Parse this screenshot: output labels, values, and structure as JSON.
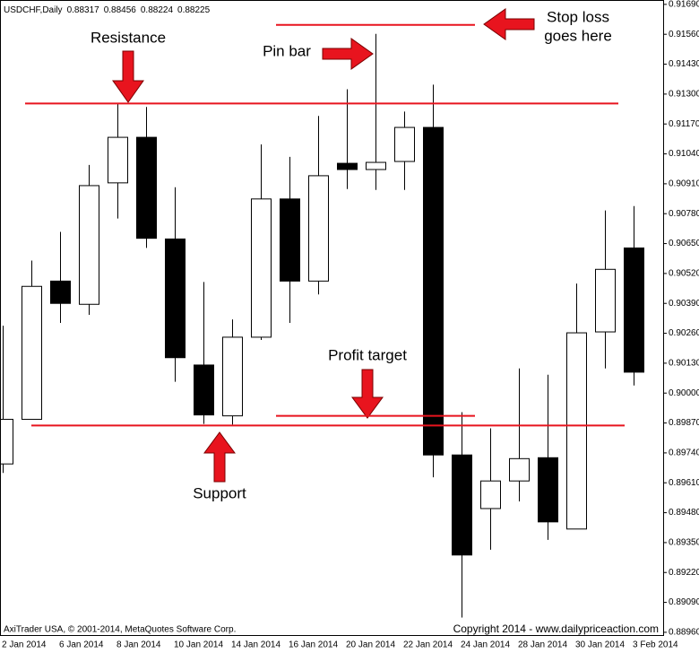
{
  "chart_data": {
    "type": "candlestick",
    "title": "USDCHF,Daily",
    "header_ohlc": [
      0.88317,
      0.88456,
      0.88224,
      0.88225
    ],
    "categories": [
      "2 Jan 2014",
      null,
      "6 Jan 2014",
      null,
      "8 Jan 2014",
      null,
      "10 Jan 2014",
      null,
      "14 Jan 2014",
      null,
      "16 Jan 2014",
      null,
      "20 Jan 2014",
      null,
      "22 Jan 2014",
      null,
      "24 Jan 2014",
      null,
      "28 Jan 2014",
      null,
      "30 Jan 2014",
      null,
      "3 Feb 2014"
    ],
    "open": [
      0.89692,
      0.89886,
      0.90487,
      0.90386,
      0.90914,
      0.91112,
      0.9067,
      0.90122,
      0.89901,
      0.90243,
      0.90844,
      0.90487,
      0.90999,
      0.90972,
      0.91007,
      0.91155,
      0.89731,
      0.89498,
      0.89618,
      0.89719,
      0.89409,
      0.90266,
      0.90631
    ],
    "high": [
      0.90293,
      0.90576,
      0.90701,
      0.90992,
      0.91259,
      0.91244,
      0.90895,
      0.90483,
      0.9032,
      0.91081,
      0.91027,
      0.91205,
      0.91321,
      0.91562,
      0.91224,
      0.91341,
      0.89917,
      0.89847,
      0.90107,
      0.9008,
      0.90476,
      0.90794,
      0.90813
    ],
    "low": [
      0.89653,
      0.89886,
      0.90305,
      0.9034,
      0.90759,
      0.90631,
      0.90049,
      0.89866,
      0.89863,
      0.90231,
      0.90305,
      0.90429,
      0.90887,
      0.90883,
      0.90883,
      0.89634,
      0.89024,
      0.89319,
      0.89529,
      0.89362,
      0.89409,
      0.90107,
      0.90033
    ],
    "close": [
      0.89886,
      0.90464,
      0.9039,
      0.90902,
      0.91112,
      0.90673,
      0.90154,
      0.89905,
      0.90243,
      0.90844,
      0.90487,
      0.90945,
      0.90972,
      0.91003,
      0.91155,
      0.89731,
      0.89296,
      0.89618,
      0.89715,
      0.8944,
      0.90262,
      0.90538,
      0.90091
    ],
    "up_color": "#ffffff",
    "down_color": "#000000",
    "ylim": [
      0.88948,
      0.91709
    ],
    "yticks": [
      {
        "value": 0.9169,
        "label": "0.91690"
      },
      {
        "value": 0.9156,
        "label": "0.91560"
      },
      {
        "value": 0.9143,
        "label": "0.91430"
      },
      {
        "value": 0.913,
        "label": "0.91300"
      },
      {
        "value": 0.9117,
        "label": "0.91170"
      },
      {
        "value": 0.9104,
        "label": "0.91040"
      },
      {
        "value": 0.9091,
        "label": "0.90910"
      },
      {
        "value": 0.9078,
        "label": "0.90780"
      },
      {
        "value": 0.9065,
        "label": "0.90650"
      },
      {
        "value": 0.9052,
        "label": "0.90520"
      },
      {
        "value": 0.9039,
        "label": "0.90390"
      },
      {
        "value": 0.9026,
        "label": "0.90260"
      },
      {
        "value": 0.9013,
        "label": "0.90130"
      },
      {
        "value": 0.9,
        "label": "0.90000"
      },
      {
        "value": 0.8987,
        "label": "0.89870"
      },
      {
        "value": 0.8974,
        "label": "0.89740"
      },
      {
        "value": 0.8961,
        "label": "0.89610"
      },
      {
        "value": 0.8948,
        "label": "0.89480"
      },
      {
        "value": 0.8935,
        "label": "0.89350"
      },
      {
        "value": 0.8922,
        "label": "0.89220"
      },
      {
        "value": 0.8909,
        "label": "0.89090"
      },
      {
        "value": 0.8896,
        "label": "0.88960"
      }
    ],
    "levels": [
      0.91259,
      0.89859,
      0.91601,
      0.89901
    ],
    "level_color": "#e8141e",
    "annotations": [
      "Resistance",
      "Pin bar",
      "Stop loss",
      "goes here",
      "Profit target",
      "Support"
    ],
    "footer_left": "AxiTrader USA, © 2001-2014, MetaQuotes Software Corp.",
    "footer_right": "Copyright 2014 - www.dailypriceaction.com"
  }
}
